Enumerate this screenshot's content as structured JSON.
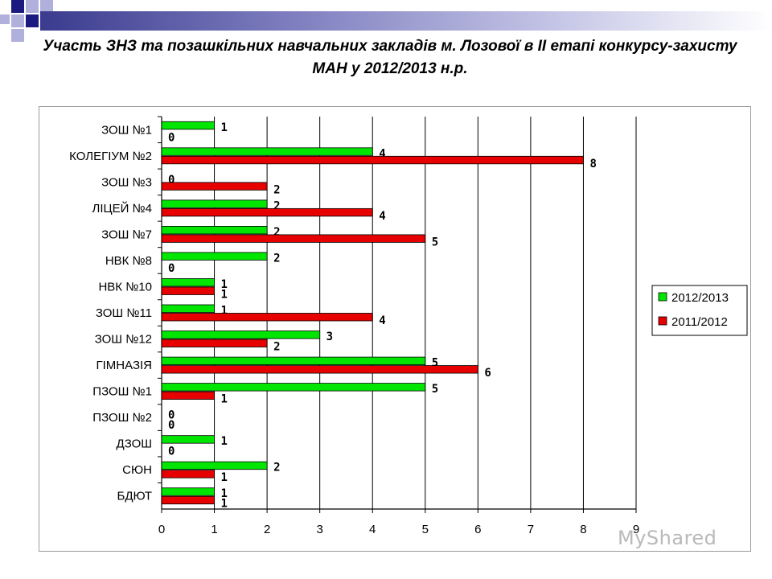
{
  "title": "Участь ЗНЗ та позашкільних навчальних закладів м. Лозової в ІІ етапі конкурсу-захисту МАН у 2012/2013 н.р.",
  "watermark": "MyShared",
  "colors": {
    "series_2012_2013": "#00e600",
    "series_2011_2012": "#e60000",
    "grid": "#000000",
    "frame": "#9a9a9a"
  },
  "chart_data": {
    "type": "bar",
    "orientation": "horizontal",
    "categories": [
      "ЗОШ №1",
      "КОЛЕГІУМ №2",
      "ЗОШ №3",
      "ЛІЦЕЙ №4",
      "ЗОШ №7",
      "НВК №8",
      "НВК №10",
      "ЗОШ №11",
      "ЗОШ №12",
      "ГІМНАЗІЯ",
      "ПЗОШ №1",
      "ПЗОШ №2",
      "ДЗОШ",
      "СЮН",
      "БДЮТ"
    ],
    "series": [
      {
        "name": "2012/2013",
        "color": "#00e600",
        "values": [
          1,
          4,
          0,
          2,
          2,
          2,
          1,
          1,
          3,
          5,
          5,
          0,
          1,
          2,
          1
        ]
      },
      {
        "name": "2011/2012",
        "color": "#e60000",
        "values": [
          0,
          8,
          2,
          4,
          5,
          0,
          1,
          4,
          2,
          6,
          1,
          0,
          0,
          1,
          1
        ]
      }
    ],
    "xlim": [
      0,
      9
    ],
    "xticks": [
      "0",
      "1",
      "2",
      "3",
      "4",
      "5",
      "6",
      "7",
      "8",
      "9"
    ],
    "grid": true,
    "legend_position": "right"
  }
}
